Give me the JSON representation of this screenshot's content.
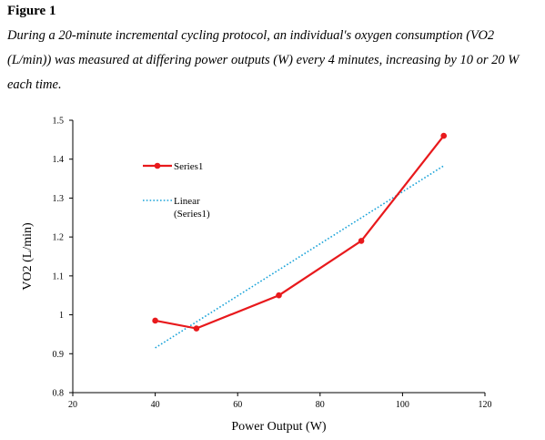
{
  "figure": {
    "label": "Figure 1",
    "caption": "During a 20-minute incremental cycling protocol, an individual's oxygen consumption (VO2 (L/min)) was measured at differing power outputs (W) every 4 minutes, increasing by 10 or 20 W each time."
  },
  "chart_data": {
    "type": "line",
    "title": "",
    "xlabel": "Power Output  (W)",
    "ylabel": "VO2 (L/min)",
    "xlim": [
      20,
      120
    ],
    "ylim": [
      0.8,
      1.5
    ],
    "x_ticks": [
      20,
      40,
      60,
      80,
      100,
      120
    ],
    "x_tick_labels": [
      "20",
      "40",
      "60",
      "80",
      "100",
      "120"
    ],
    "y_ticks": [
      0.8,
      0.9,
      1.0,
      1.1,
      1.2,
      1.3,
      1.4,
      1.5
    ],
    "y_tick_labels": [
      "0.8",
      "0.9",
      "1",
      "1.1",
      "1.2",
      "1.3",
      "1.4",
      "1.5"
    ],
    "grid": false,
    "legend_position": "top-left",
    "series": [
      {
        "name": "Series1",
        "color": "#e8191c",
        "x": [
          40,
          50,
          70,
          90,
          110
        ],
        "y": [
          0.985,
          0.965,
          1.05,
          1.19,
          1.46
        ]
      }
    ],
    "trendline": {
      "name": "Linear",
      "name_line2": "(Series1)",
      "color": "#1aa3d9",
      "style": "dotted",
      "x": [
        40,
        110
      ],
      "y": [
        0.915,
        1.383
      ]
    }
  }
}
